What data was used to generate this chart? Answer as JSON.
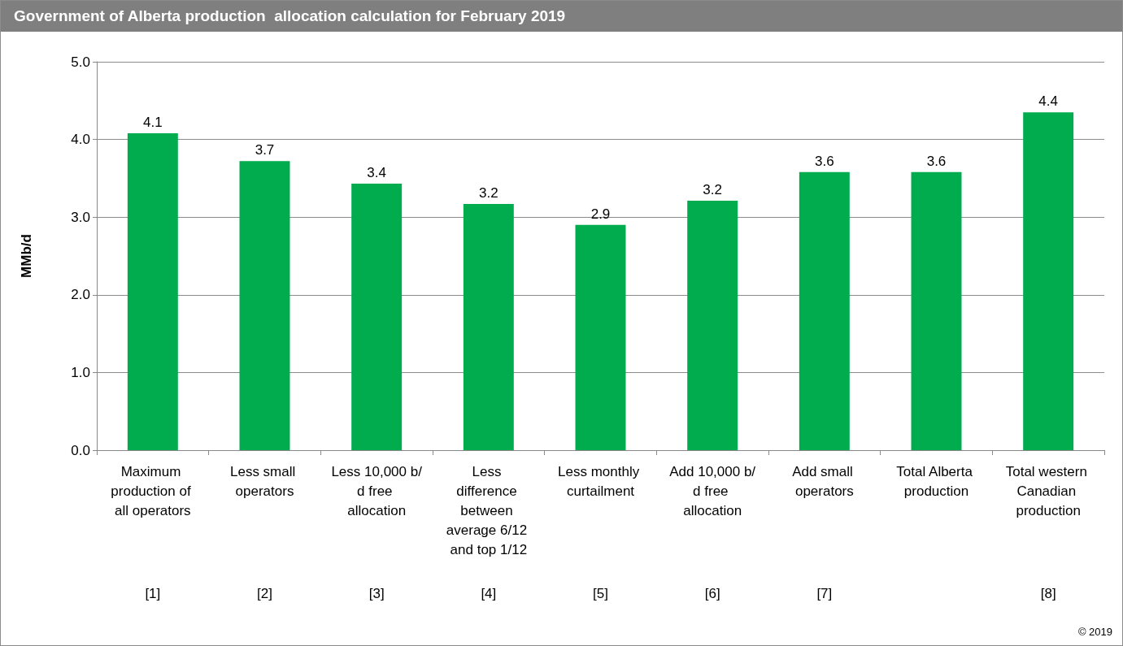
{
  "chart_data": {
    "type": "bar",
    "title": "Government of Alberta production  allocation calculation for February 2019",
    "ylabel": "MMb/d",
    "categories": [
      "Maximum production of all operators",
      "Less small operators",
      "Less 10,000 b/d free allocation",
      "Less difference between average 6/12 and top 1/12",
      "Less monthly curtailment",
      "Add 10,000 b/d free allocation",
      "Add small operators",
      "Total Alberta production",
      "Total western Canadian production"
    ],
    "values": [
      4.08,
      3.72,
      3.43,
      3.17,
      2.9,
      3.21,
      3.58,
      3.58,
      4.35
    ],
    "value_labels": [
      "4.1",
      "3.7",
      "3.4",
      "3.2",
      "2.9",
      "3.2",
      "3.6",
      "3.6",
      "4.4"
    ],
    "color": "#00ac4e",
    "ylim": [
      0,
      5
    ],
    "yticks": [
      {
        "value": 0,
        "label": "0.0"
      },
      {
        "value": 1,
        "label": "1.0"
      },
      {
        "value": 2,
        "label": "2.0"
      },
      {
        "value": 3,
        "label": "3.0"
      },
      {
        "value": 4,
        "label": "4.0"
      },
      {
        "value": 5,
        "label": "5.0"
      }
    ],
    "grid": "y",
    "annotations": [
      "[1]",
      "[2]",
      "[3]",
      "[4]",
      "[5]",
      "[6]",
      "[7]",
      "[8]",
      "© 2019"
    ]
  }
}
